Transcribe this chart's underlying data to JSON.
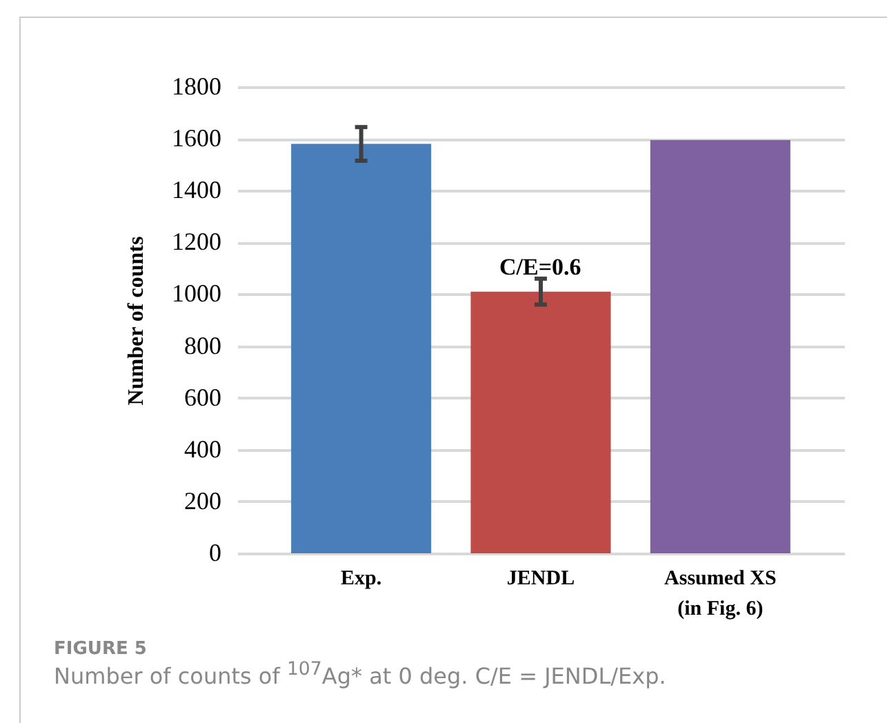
{
  "chart_data": {
    "type": "bar",
    "ylabel": "Number of counts",
    "categories": [
      "Exp.",
      "JENDL",
      "Assumed XS\n(in Fig. 6)"
    ],
    "values": [
      1580,
      1010,
      1595
    ],
    "colors": [
      "#4a7ebb",
      "#be4b48",
      "#7f60a0"
    ],
    "errors": [
      65,
      50,
      null
    ],
    "ylim": [
      0,
      1800
    ],
    "yticks": [
      0,
      200,
      400,
      600,
      800,
      1000,
      1200,
      1400,
      1600,
      1800
    ],
    "grid": "y",
    "legend": false,
    "annotations": [
      "C/E=0.6",
      "FIGURE 5",
      "Number of counts of $^{107}$Ag* at 0 deg. C/E = JENDL/Exp."
    ]
  }
}
